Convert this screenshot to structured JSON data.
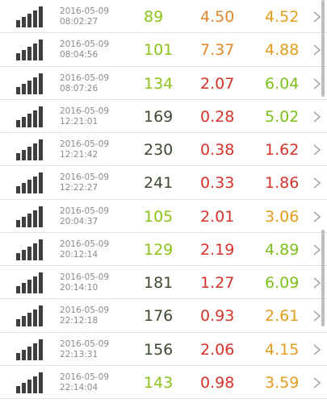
{
  "rows": [
    {
      "date": "2016-05-09",
      "time": "08:02:27",
      "v1": "89",
      "c1": "lime",
      "v2": "4.50",
      "c2": "orange",
      "v3": "4.52",
      "c3": "amber"
    },
    {
      "date": "2016-05-09",
      "time": "08:04:56",
      "v1": "101",
      "c1": "lime",
      "v2": "7.37",
      "c2": "orange",
      "v3": "4.88",
      "c3": "amber"
    },
    {
      "date": "2016-05-09",
      "time": "08:07:26",
      "v1": "134",
      "c1": "lime",
      "v2": "2.07",
      "c2": "red",
      "v3": "6.04",
      "c3": "green"
    },
    {
      "date": "2016-05-09",
      "time": "12:21:01",
      "v1": "169",
      "c1": "dark",
      "v2": "0.28",
      "c2": "red",
      "v3": "5.02",
      "c3": "green"
    },
    {
      "date": "2016-05-09",
      "time": "12:21:42",
      "v1": "230",
      "c1": "dark",
      "v2": "0.38",
      "c2": "red",
      "v3": "1.62",
      "c3": "red"
    },
    {
      "date": "2016-05-09",
      "time": "12:22:27",
      "v1": "241",
      "c1": "dark",
      "v2": "0.33",
      "c2": "red",
      "v3": "1.86",
      "c3": "red"
    },
    {
      "date": "2016-05-09",
      "time": "20:04:37",
      "v1": "105",
      "c1": "lime",
      "v2": "2.01",
      "c2": "red",
      "v3": "3.06",
      "c3": "amber"
    },
    {
      "date": "2016-05-09",
      "time": "20:12:14",
      "v1": "129",
      "c1": "lime",
      "v2": "2.19",
      "c2": "red",
      "v3": "4.89",
      "c3": "green"
    },
    {
      "date": "2016-05-09",
      "time": "20:14:10",
      "v1": "181",
      "c1": "dark",
      "v2": "1.27",
      "c2": "red",
      "v3": "6.09",
      "c3": "green"
    },
    {
      "date": "2016-05-09",
      "time": "22:12:18",
      "v1": "176",
      "c1": "dark",
      "v2": "0.93",
      "c2": "red",
      "v3": "2.61",
      "c3": "amber"
    },
    {
      "date": "2016-05-09",
      "time": "22:13:31",
      "v1": "156",
      "c1": "dark",
      "v2": "2.06",
      "c2": "red",
      "v3": "4.15",
      "c3": "amber"
    },
    {
      "date": "2016-05-09",
      "time": "22:14:04",
      "v1": "143",
      "c1": "lime",
      "v2": "0.98",
      "c2": "red",
      "v3": "3.59",
      "c3": "amber"
    }
  ],
  "icons": {
    "signal": "signal-strength-icon",
    "chevron": "chevron-right-icon"
  },
  "colors": {
    "lime": "#8cc21a",
    "dark": "#3c4a32",
    "orange": "#e2882a",
    "red": "#d3332a",
    "amber": "#e29c1e",
    "green": "#7dc01d",
    "divider": "#e2e2e2",
    "timestamp": "#8a8a8a",
    "icon": "#3f3f3f"
  }
}
